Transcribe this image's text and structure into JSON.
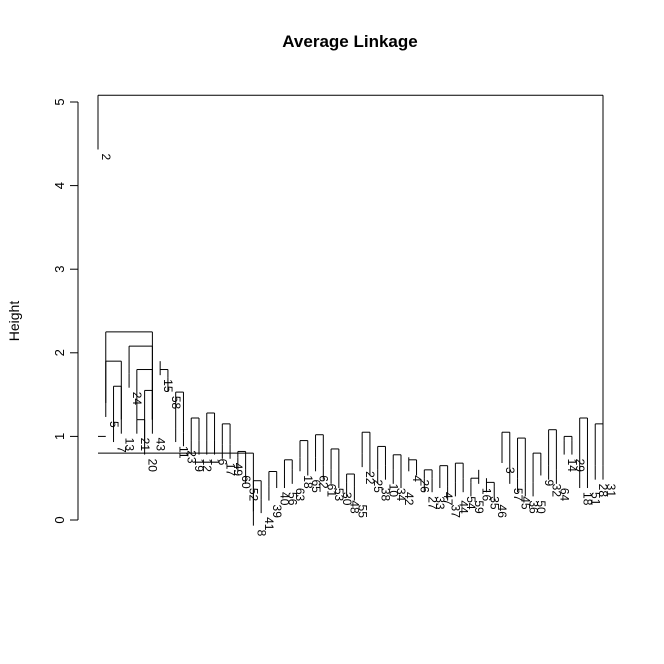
{
  "chart_data": {
    "type": "dendrogram",
    "title": "Average Linkage",
    "ylabel": "Height",
    "xlabel": "",
    "ylim": [
      0,
      5
    ],
    "y_ticks": [
      "0",
      "1",
      "2",
      "3",
      "4",
      "5"
    ],
    "leaf_order": [
      "2",
      "5",
      "7",
      "13",
      "24",
      "21",
      "20",
      "43",
      "15",
      "58",
      "11",
      "23",
      "19",
      "12",
      "1",
      "6",
      "17",
      "49",
      "60",
      "52",
      "8",
      "41",
      "39",
      "40",
      "56",
      "63",
      "18",
      "65",
      "62",
      "61",
      "53",
      "30",
      "48",
      "55",
      "22",
      "25",
      "38",
      "10",
      "34",
      "42",
      "4",
      "26",
      "27",
      "33",
      "47",
      "37",
      "44",
      "54",
      "59",
      "16",
      "35",
      "46",
      "3",
      "57",
      "45",
      "36",
      "50",
      "9",
      "32",
      "64",
      "14",
      "29",
      "18",
      "51",
      "28",
      "31"
    ],
    "leaf_heights": [
      4.6,
      1.4,
      1.1,
      1.2,
      1.75,
      1.2,
      0.95,
      1.2,
      1.9,
      1.7,
      1.1,
      1.05,
      0.95,
      0.95,
      0.95,
      0.95,
      0.9,
      0.9,
      0.75,
      0.6,
      0.1,
      0.25,
      0.4,
      0.55,
      0.55,
      0.6,
      0.75,
      0.7,
      0.75,
      0.65,
      0.6,
      0.55,
      0.45,
      0.4,
      0.8,
      0.7,
      0.6,
      0.65,
      0.6,
      0.55,
      0.75,
      0.7,
      0.5,
      0.5,
      0.55,
      0.4,
      0.45,
      0.5,
      0.45,
      0.6,
      0.5,
      0.4,
      0.85,
      0.6,
      0.5,
      0.45,
      0.45,
      0.7,
      0.65,
      0.6,
      0.95,
      0.95,
      0.55,
      0.55,
      0.65,
      0.65
    ],
    "merges": [
      {
        "left": 0,
        "right": 20,
        "height": 0.8
      },
      {
        "left": 0,
        "right": 1,
        "height": 1.0
      },
      {
        "left": 2,
        "right": 3,
        "height": 1.6
      },
      {
        "left": 5,
        "right": 6,
        "height": 1.2
      },
      {
        "left": 6,
        "right": 7,
        "height": 1.55
      },
      {
        "left": 5,
        "right": 7,
        "height": 1.8
      },
      {
        "left": 4,
        "right": 7,
        "height": 2.08
      },
      {
        "left": 1,
        "right": 3,
        "height": 1.9
      },
      {
        "left": 1,
        "right": 7,
        "height": 2.25
      },
      {
        "left": 8,
        "right": 9,
        "height": 1.8
      },
      {
        "left": 10,
        "right": 11,
        "height": 1.53
      },
      {
        "left": 12,
        "right": 13,
        "height": 1.22
      },
      {
        "left": 14,
        "right": 15,
        "height": 1.28
      },
      {
        "left": 16,
        "right": 17,
        "height": 1.15
      },
      {
        "left": 18,
        "right": 19,
        "height": 0.82
      },
      {
        "left": 20,
        "right": 21,
        "height": 0.47
      },
      {
        "left": 22,
        "right": 23,
        "height": 0.58
      },
      {
        "left": 24,
        "right": 25,
        "height": 0.72
      },
      {
        "left": 26,
        "right": 27,
        "height": 0.95
      },
      {
        "left": 28,
        "right": 29,
        "height": 1.02
      },
      {
        "left": 30,
        "right": 31,
        "height": 0.85
      },
      {
        "left": 32,
        "right": 33,
        "height": 0.55
      },
      {
        "left": 34,
        "right": 35,
        "height": 1.05
      },
      {
        "left": 36,
        "right": 37,
        "height": 0.88
      },
      {
        "left": 38,
        "right": 39,
        "height": 0.78
      },
      {
        "left": 40,
        "right": 41,
        "height": 0.72
      },
      {
        "left": 42,
        "right": 43,
        "height": 0.6
      },
      {
        "left": 44,
        "right": 45,
        "height": 0.65
      },
      {
        "left": 46,
        "right": 47,
        "height": 0.68
      },
      {
        "left": 48,
        "right": 49,
        "height": 0.5
      },
      {
        "left": 50,
        "right": 51,
        "height": 0.45
      },
      {
        "left": 52,
        "right": 53,
        "height": 1.05
      },
      {
        "left": 54,
        "right": 55,
        "height": 0.98
      },
      {
        "left": 56,
        "right": 57,
        "height": 0.8
      },
      {
        "left": 58,
        "right": 59,
        "height": 1.08
      },
      {
        "left": 60,
        "right": 61,
        "height": 1.0
      },
      {
        "left": 62,
        "right": 63,
        "height": 1.22
      },
      {
        "left": 64,
        "right": 65,
        "height": 1.15
      },
      {
        "left": 0,
        "right": 65,
        "height": 5.08
      }
    ]
  }
}
